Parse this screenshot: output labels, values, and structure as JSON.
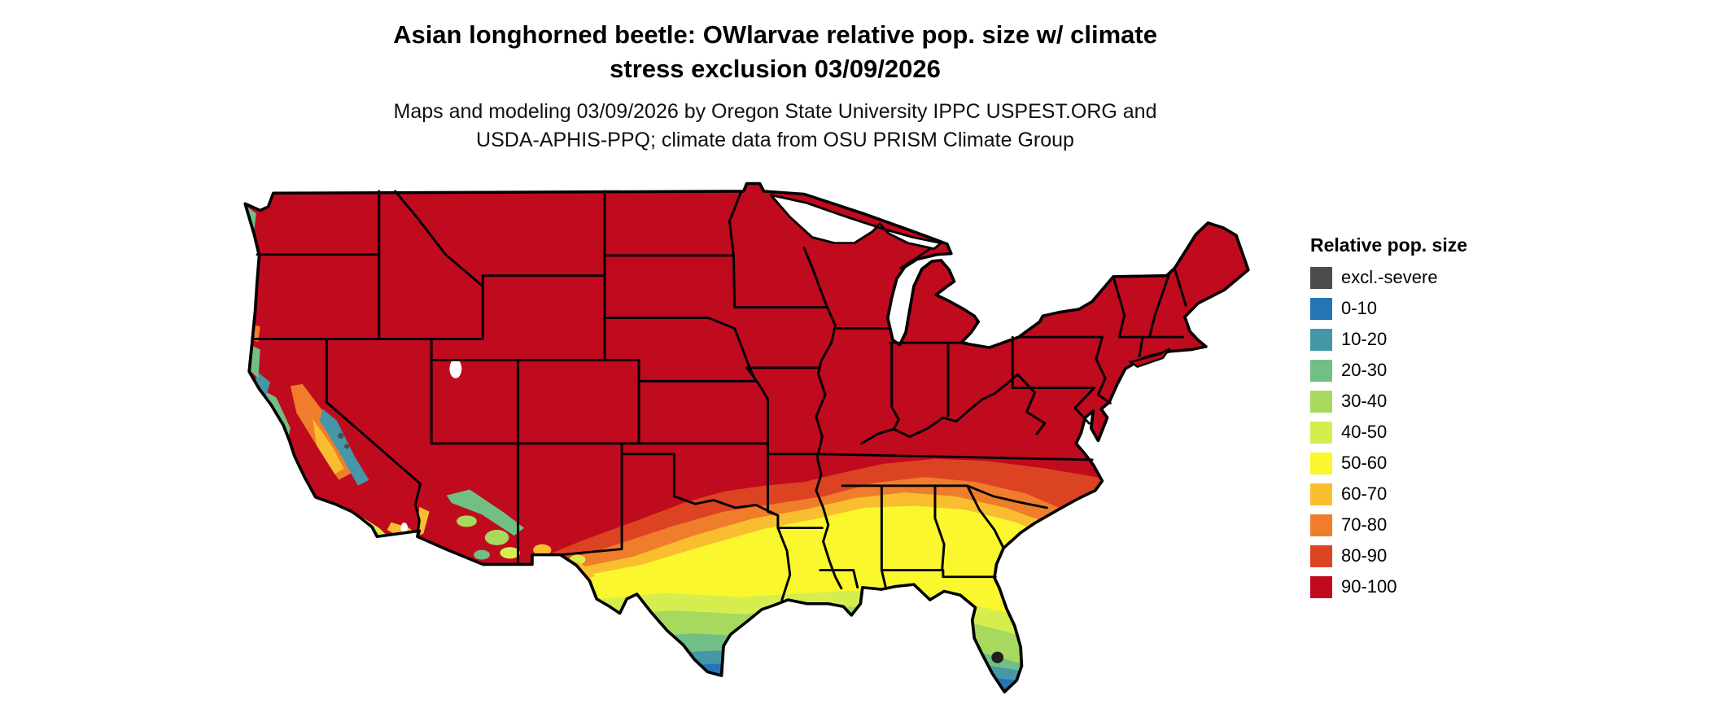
{
  "header": {
    "title": {
      "line1": "Asian longhorned beetle: OWlarvae relative pop. size w/ climate",
      "line2": "stress exclusion 03/09/2026"
    },
    "subtitle": {
      "line1": "Maps and modeling 03/09/2026 by Oregon State University IPPC USPEST.ORG and",
      "line2": "USDA-APHIS-PPQ; climate data from OSU PRISM Climate Group"
    }
  },
  "legend": {
    "title": "Relative pop. size",
    "entries": [
      {
        "label": "excl.-severe",
        "color": "#4d4d4d"
      },
      {
        "label": "0-10",
        "color": "#2474b6"
      },
      {
        "label": "10-20",
        "color": "#4697a8"
      },
      {
        "label": "20-30",
        "color": "#72bf85"
      },
      {
        "label": "30-40",
        "color": "#a6d95e"
      },
      {
        "label": "40-50",
        "color": "#d6ed4e"
      },
      {
        "label": "50-60",
        "color": "#fbf72e"
      },
      {
        "label": "60-70",
        "color": "#f9bd30"
      },
      {
        "label": "70-80",
        "color": "#ef7d2b"
      },
      {
        "label": "80-90",
        "color": "#dc4323"
      },
      {
        "label": "90-100",
        "color": "#c00a1e"
      }
    ]
  }
}
